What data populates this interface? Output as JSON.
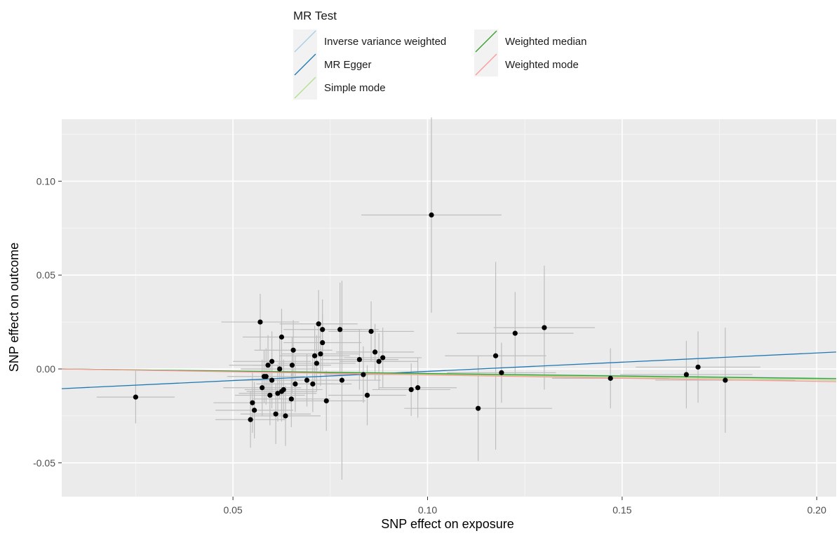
{
  "chart_data": {
    "type": "scatter",
    "title": "",
    "xlabel": "SNP effect on exposure",
    "ylabel": "SNP effect on outcome",
    "xlim": [
      0.006,
      0.205
    ],
    "ylim": [
      -0.068,
      0.133
    ],
    "x_ticks": [
      0.05,
      0.1,
      0.15,
      0.2
    ],
    "x_tick_labels": [
      "0.05",
      "0.10",
      "0.15",
      "0.20"
    ],
    "y_ticks": [
      -0.05,
      0.0,
      0.05,
      0.1
    ],
    "y_tick_labels": [
      "-0.05",
      "0.00",
      "0.05",
      "0.10"
    ],
    "grid": true,
    "background": "#EBEBEB",
    "legend": {
      "title": "MR Test",
      "placement": "top",
      "entries": [
        {
          "label": "Inverse variance weighted",
          "color": "#A6CEE3"
        },
        {
          "label": "MR Egger",
          "color": "#1F78B4"
        },
        {
          "label": "Simple mode",
          "color": "#B2DF8A"
        },
        {
          "label": "Weighted median",
          "color": "#33A02C"
        },
        {
          "label": "Weighted mode",
          "color": "#FB9A99"
        }
      ]
    },
    "lines": [
      {
        "label": "Inverse variance weighted",
        "color": "#A6CEE3",
        "x": [
          0.006,
          0.205
        ],
        "y": [
          0.0,
          -0.005
        ]
      },
      {
        "label": "MR Egger",
        "color": "#1F78B4",
        "x": [
          0.006,
          0.205
        ],
        "y": [
          -0.0105,
          0.009
        ]
      },
      {
        "label": "Simple mode",
        "color": "#B2DF8A",
        "x": [
          0.006,
          0.205
        ],
        "y": [
          0.0,
          -0.006
        ]
      },
      {
        "label": "Weighted median",
        "color": "#33A02C",
        "x": [
          0.006,
          0.205
        ],
        "y": [
          0.0,
          -0.0052
        ]
      },
      {
        "label": "Weighted mode",
        "color": "#FB9A99",
        "x": [
          0.006,
          0.205
        ],
        "y": [
          0.0,
          -0.0068
        ]
      }
    ],
    "points": [
      {
        "x": 0.025,
        "y": -0.015,
        "x_err": 0.01,
        "y_err": 0.014
      },
      {
        "x": 0.0545,
        "y": -0.027,
        "x_err": 0.009,
        "y_err": 0.015
      },
      {
        "x": 0.055,
        "y": -0.018,
        "x_err": 0.01,
        "y_err": 0.016
      },
      {
        "x": 0.0555,
        "y": -0.022,
        "x_err": 0.01,
        "y_err": 0.015
      },
      {
        "x": 0.057,
        "y": 0.025,
        "x_err": 0.01,
        "y_err": 0.015
      },
      {
        "x": 0.0575,
        "y": -0.01,
        "x_err": 0.01,
        "y_err": 0.015
      },
      {
        "x": 0.058,
        "y": -0.004,
        "x_err": 0.009,
        "y_err": 0.014
      },
      {
        "x": 0.0585,
        "y": -0.004,
        "x_err": 0.01,
        "y_err": 0.015
      },
      {
        "x": 0.059,
        "y": 0.002,
        "x_err": 0.01,
        "y_err": 0.016
      },
      {
        "x": 0.0595,
        "y": -0.014,
        "x_err": 0.009,
        "y_err": 0.016
      },
      {
        "x": 0.06,
        "y": 0.004,
        "x_err": 0.01,
        "y_err": 0.016
      },
      {
        "x": 0.06,
        "y": -0.006,
        "x_err": 0.01,
        "y_err": 0.015
      },
      {
        "x": 0.061,
        "y": -0.024,
        "x_err": 0.009,
        "y_err": 0.016
      },
      {
        "x": 0.0615,
        "y": -0.013,
        "x_err": 0.01,
        "y_err": 0.015
      },
      {
        "x": 0.062,
        "y": 0.0,
        "x_err": 0.01,
        "y_err": 0.016
      },
      {
        "x": 0.0625,
        "y": -0.012,
        "x_err": 0.009,
        "y_err": 0.016
      },
      {
        "x": 0.0625,
        "y": 0.017,
        "x_err": 0.01,
        "y_err": 0.015
      },
      {
        "x": 0.063,
        "y": -0.011,
        "x_err": 0.01,
        "y_err": 0.016
      },
      {
        "x": 0.0635,
        "y": -0.025,
        "x_err": 0.009,
        "y_err": 0.016
      },
      {
        "x": 0.065,
        "y": -0.016,
        "x_err": 0.01,
        "y_err": 0.015
      },
      {
        "x": 0.0652,
        "y": 0.002,
        "x_err": 0.01,
        "y_err": 0.015
      },
      {
        "x": 0.0655,
        "y": 0.01,
        "x_err": 0.01,
        "y_err": 0.016
      },
      {
        "x": 0.066,
        "y": -0.008,
        "x_err": 0.01,
        "y_err": 0.015
      },
      {
        "x": 0.069,
        "y": -0.006,
        "x_err": 0.01,
        "y_err": 0.014
      },
      {
        "x": 0.0705,
        "y": -0.008,
        "x_err": 0.01,
        "y_err": 0.015
      },
      {
        "x": 0.071,
        "y": 0.007,
        "x_err": 0.009,
        "y_err": 0.016
      },
      {
        "x": 0.0715,
        "y": 0.003,
        "x_err": 0.01,
        "y_err": 0.015
      },
      {
        "x": 0.072,
        "y": 0.024,
        "x_err": 0.01,
        "y_err": 0.018
      },
      {
        "x": 0.0725,
        "y": 0.008,
        "x_err": 0.01,
        "y_err": 0.017
      },
      {
        "x": 0.073,
        "y": 0.021,
        "x_err": 0.01,
        "y_err": 0.016
      },
      {
        "x": 0.073,
        "y": 0.014,
        "x_err": 0.01,
        "y_err": 0.015
      },
      {
        "x": 0.074,
        "y": -0.017,
        "x_err": 0.01,
        "y_err": 0.016
      },
      {
        "x": 0.0775,
        "y": 0.021,
        "x_err": 0.01,
        "y_err": 0.025
      },
      {
        "x": 0.078,
        "y": -0.006,
        "x_err": 0.01,
        "y_err": 0.053
      },
      {
        "x": 0.0825,
        "y": 0.005,
        "x_err": 0.01,
        "y_err": 0.016
      },
      {
        "x": 0.0835,
        "y": -0.003,
        "x_err": 0.01,
        "y_err": 0.015
      },
      {
        "x": 0.0845,
        "y": -0.014,
        "x_err": 0.01,
        "y_err": 0.016
      },
      {
        "x": 0.0855,
        "y": 0.02,
        "x_err": 0.011,
        "y_err": 0.016
      },
      {
        "x": 0.0865,
        "y": 0.009,
        "x_err": 0.01,
        "y_err": 0.015
      },
      {
        "x": 0.0875,
        "y": 0.004,
        "x_err": 0.01,
        "y_err": 0.015
      },
      {
        "x": 0.0885,
        "y": 0.006,
        "x_err": 0.01,
        "y_err": 0.016
      },
      {
        "x": 0.0958,
        "y": -0.011,
        "x_err": 0.01,
        "y_err": 0.014
      },
      {
        "x": 0.0975,
        "y": -0.01,
        "x_err": 0.01,
        "y_err": 0.016
      },
      {
        "x": 0.101,
        "y": 0.082,
        "x_err": 0.018,
        "y_err": 0.052
      },
      {
        "x": 0.113,
        "y": -0.021,
        "x_err": 0.019,
        "y_err": 0.028
      },
      {
        "x": 0.1175,
        "y": 0.007,
        "x_err": 0.013,
        "y_err": 0.05
      },
      {
        "x": 0.119,
        "y": -0.002,
        "x_err": 0.014,
        "y_err": 0.016
      },
      {
        "x": 0.1225,
        "y": 0.019,
        "x_err": 0.015,
        "y_err": 0.022
      },
      {
        "x": 0.13,
        "y": 0.022,
        "x_err": 0.013,
        "y_err": 0.033
      },
      {
        "x": 0.147,
        "y": -0.005,
        "x_err": 0.015,
        "y_err": 0.016
      },
      {
        "x": 0.1665,
        "y": -0.003,
        "x_err": 0.017,
        "y_err": 0.018
      },
      {
        "x": 0.1695,
        "y": 0.001,
        "x_err": 0.016,
        "y_err": 0.019
      },
      {
        "x": 0.1765,
        "y": -0.006,
        "x_err": 0.018,
        "y_err": 0.028
      }
    ]
  }
}
